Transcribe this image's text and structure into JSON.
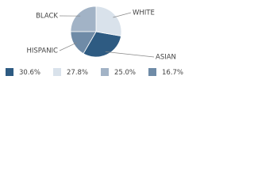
{
  "chart_data": {
    "type": "pie",
    "categories": [
      "ASIAN",
      "WHITE",
      "BLACK",
      "HISPANIC"
    ],
    "values": [
      30.6,
      27.8,
      25.0,
      16.7
    ],
    "value_labels": [
      "30.6%",
      "27.8%",
      "25.0%",
      "16.7%"
    ],
    "colors": [
      "#2e5b82",
      "#d9e2eb",
      "#a2b3c6",
      "#6f8ba7"
    ]
  }
}
